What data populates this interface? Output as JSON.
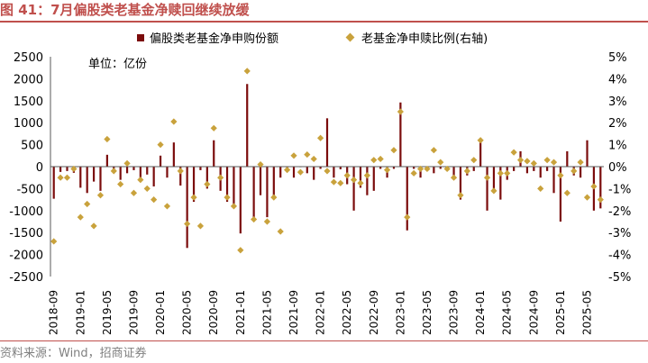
{
  "header": {
    "title": "图 41：7月偏股类老基金净赎回继续放缓"
  },
  "footer": {
    "source": "资料来源：Wind，招商证券"
  },
  "chart_data": {
    "type": "bar+scatter",
    "unit_label": "单位：亿份",
    "legend": {
      "bar": "偏股类老基金净申购份额",
      "scatter": "老基金净申赎比例(右轴)"
    },
    "colors": {
      "bar": "#7b0c0c",
      "scatter": "#c9a23c",
      "title": "#c0504d"
    },
    "y_left": {
      "min": -2500,
      "max": 2500,
      "ticks": [
        2500,
        2000,
        1500,
        1000,
        500,
        0,
        -500,
        -1000,
        -1500,
        -2000,
        -2500
      ]
    },
    "y_right": {
      "min": -5,
      "max": 5,
      "ticks": [
        "5%",
        "4%",
        "3%",
        "2%",
        "1%",
        "0%",
        "-1%",
        "-2%",
        "-3%",
        "-4%",
        "-5%"
      ]
    },
    "x_tick_labels": [
      "2018-09",
      "2019-01",
      "2019-05",
      "2019-09",
      "2020-01",
      "2020-05",
      "2020-09",
      "2021-01",
      "2021-05",
      "2021-09",
      "2022-01",
      "2022-05",
      "2022-09",
      "2023-01",
      "2023-05",
      "2023-09",
      "2024-01",
      "2024-05",
      "2024-09",
      "2025-01",
      "2025-05"
    ],
    "months": [
      "2018-09",
      "2018-10",
      "2018-11",
      "2018-12",
      "2019-01",
      "2019-02",
      "2019-03",
      "2019-04",
      "2019-05",
      "2019-06",
      "2019-07",
      "2019-08",
      "2019-09",
      "2019-10",
      "2019-11",
      "2019-12",
      "2020-01",
      "2020-02",
      "2020-03",
      "2020-04",
      "2020-05",
      "2020-06",
      "2020-07",
      "2020-08",
      "2020-09",
      "2020-10",
      "2020-11",
      "2020-12",
      "2021-01",
      "2021-02",
      "2021-03",
      "2021-04",
      "2021-05",
      "2021-06",
      "2021-07",
      "2021-08",
      "2021-09",
      "2021-10",
      "2021-11",
      "2021-12",
      "2022-01",
      "2022-02",
      "2022-03",
      "2022-04",
      "2022-05",
      "2022-06",
      "2022-07",
      "2022-08",
      "2022-09",
      "2022-10",
      "2022-11",
      "2022-12",
      "2023-01",
      "2023-02",
      "2023-03",
      "2023-04",
      "2023-05",
      "2023-06",
      "2023-07",
      "2023-08",
      "2023-09",
      "2023-10",
      "2023-11",
      "2023-12",
      "2024-01",
      "2024-02",
      "2024-03",
      "2024-04",
      "2024-05",
      "2024-06",
      "2024-07",
      "2024-08",
      "2024-09",
      "2024-10",
      "2024-11",
      "2024-12",
      "2025-01",
      "2025-02",
      "2025-03",
      "2025-04",
      "2025-05",
      "2025-06",
      "2025-07"
    ],
    "net_subscription": [
      -730,
      -120,
      -100,
      -140,
      -480,
      -600,
      -340,
      -550,
      270,
      -150,
      -300,
      -150,
      -80,
      -300,
      -180,
      -450,
      250,
      -250,
      550,
      -430,
      -1850,
      -800,
      -80,
      -500,
      600,
      -550,
      -800,
      -850,
      -1520,
      1880,
      -1250,
      -650,
      -1150,
      -700,
      -250,
      -70,
      -250,
      -10,
      -150,
      -300,
      -50,
      1100,
      -250,
      -60,
      -400,
      -1000,
      -480,
      -650,
      -550,
      -50,
      -250,
      -50,
      1460,
      -1450,
      -50,
      -250,
      -100,
      -150,
      -50,
      -100,
      -250,
      -750,
      -200,
      -100,
      650,
      -1000,
      -500,
      -750,
      -300,
      -100,
      350,
      -150,
      -100,
      -250,
      -100,
      -600,
      -1250,
      350,
      -200,
      -250,
      600,
      -1000,
      -950
    ],
    "net_ratio_pct": [
      -3.4,
      -0.5,
      -0.5,
      -0.1,
      -2.3,
      -1.7,
      -2.7,
      -1.3,
      1.25,
      -0.2,
      -0.8,
      0.15,
      -1.2,
      -0.6,
      -1.0,
      -1.5,
      1.0,
      -1.8,
      2.05,
      -0.2,
      -2.6,
      -1.4,
      -2.7,
      -0.8,
      1.75,
      -0.5,
      -1.4,
      -1.8,
      -3.8,
      4.35,
      -2.4,
      0.1,
      -2.5,
      -1.4,
      -2.95,
      -0.15,
      0.5,
      -0.25,
      0.55,
      0.35,
      1.3,
      -0.2,
      -0.7,
      -0.75,
      -0.4,
      -0.6,
      -0.75,
      -0.4,
      0.3,
      0.35,
      -0.15,
      0.75,
      2.5,
      -2.3,
      -0.3,
      -0.1,
      -0.1,
      0.75,
      0.2,
      -0.1,
      -0.5,
      -1.3,
      -0.2,
      0.3,
      1.2,
      -0.5,
      -1.1,
      -0.3,
      -0.3,
      0.65,
      0.3,
      0.25,
      0.15,
      -1.0,
      0.3,
      0.2,
      -0.4,
      -1.2,
      -0.2,
      0.2,
      -1.4,
      -0.9,
      -1.5
    ]
  }
}
